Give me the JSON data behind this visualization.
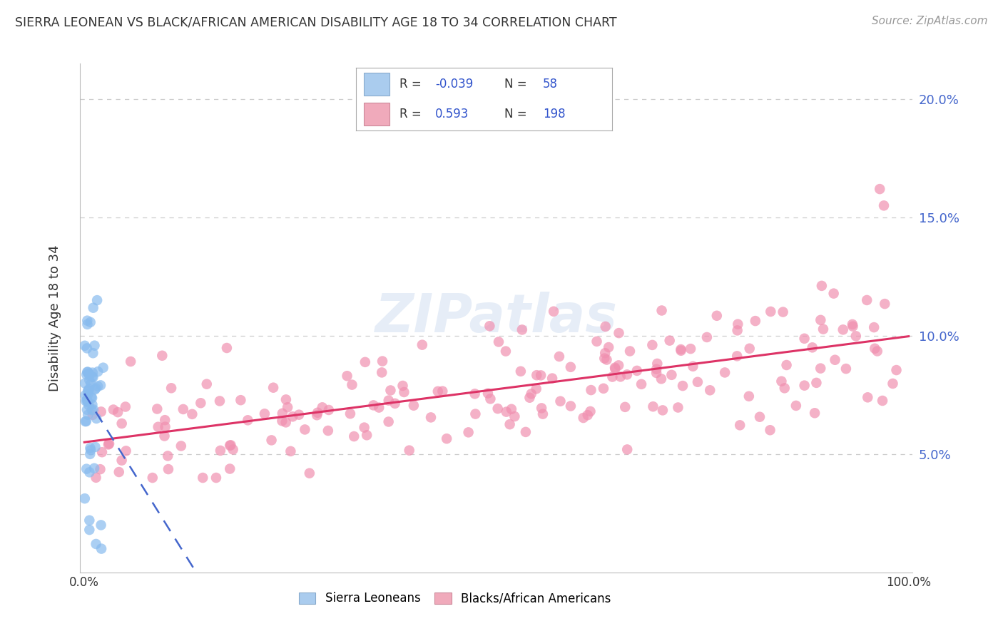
{
  "title": "SIERRA LEONEAN VS BLACK/AFRICAN AMERICAN DISABILITY AGE 18 TO 34 CORRELATION CHART",
  "source": "Source: ZipAtlas.com",
  "ylabel": "Disability Age 18 to 34",
  "y_ticks": [
    0.0,
    0.05,
    0.1,
    0.15,
    0.2
  ],
  "y_tick_labels": [
    "",
    "5.0%",
    "10.0%",
    "15.0%",
    "20.0%"
  ],
  "xlim": [
    0.0,
    1.0
  ],
  "ylim": [
    0.0,
    0.21
  ],
  "sierra_R": -0.039,
  "sierra_N": 58,
  "black_R": 0.593,
  "black_N": 198,
  "watermark": "ZIPatlas",
  "background_color": "#ffffff",
  "grid_color": "#cccccc",
  "sierra_color": "#88bbee",
  "black_color": "#f090b0",
  "sierra_line_color": "#4466cc",
  "black_line_color": "#dd3366",
  "title_color": "#333333",
  "legend_blue_fill": "#aaccee",
  "legend_pink_fill": "#f0aabb",
  "legend_text_dark": "#333333",
  "legend_text_blue": "#3355cc",
  "tick_color_right": "#4466cc",
  "tick_color_bottom": "#333333"
}
